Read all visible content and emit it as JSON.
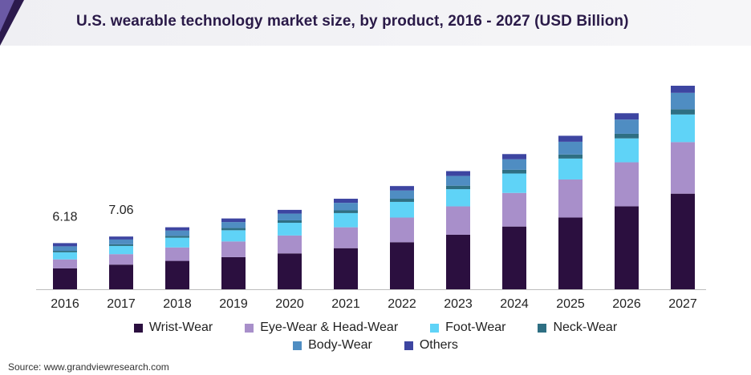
{
  "title": "U.S. wearable technology market size, by product, 2016 - 2027 (USD Billion)",
  "source": "Source: www.grandviewresearch.com",
  "colors": {
    "wrist": "#2b0f3f",
    "eye": "#a88fca",
    "foot": "#5fd3f7",
    "neck": "#2e6f83",
    "body": "#4f8dc2",
    "others": "#3d45a1"
  },
  "chart_data": {
    "type": "bar",
    "stacked": true,
    "categories": [
      "2016",
      "2017",
      "2018",
      "2019",
      "2020",
      "2021",
      "2022",
      "2023",
      "2024",
      "2025",
      "2026",
      "2027"
    ],
    "series": [
      {
        "name": "Wrist-Wear",
        "color_key": "wrist",
        "values": [
          2.8,
          3.3,
          3.8,
          4.3,
          4.8,
          5.5,
          6.3,
          7.3,
          8.4,
          9.6,
          11.1,
          12.8
        ]
      },
      {
        "name": "Eye-Wear & Head-Wear",
        "color_key": "eye",
        "values": [
          1.2,
          1.4,
          1.8,
          2.1,
          2.4,
          2.8,
          3.3,
          3.8,
          4.5,
          5.1,
          5.9,
          6.9
        ]
      },
      {
        "name": "Foot-Wear",
        "color_key": "foot",
        "values": [
          0.95,
          1.1,
          1.3,
          1.5,
          1.7,
          1.9,
          2.1,
          2.3,
          2.6,
          2.8,
          3.2,
          3.7
        ]
      },
      {
        "name": "Neck-Wear",
        "color_key": "neck",
        "values": [
          0.2,
          0.22,
          0.26,
          0.3,
          0.33,
          0.37,
          0.42,
          0.47,
          0.5,
          0.55,
          0.62,
          0.7
        ]
      },
      {
        "name": "Body-Wear",
        "color_key": "body",
        "values": [
          0.6,
          0.64,
          0.7,
          0.8,
          0.9,
          1.0,
          1.1,
          1.3,
          1.4,
          1.7,
          1.9,
          2.2
        ]
      },
      {
        "name": "Others",
        "color_key": "others",
        "values": [
          0.43,
          0.4,
          0.44,
          0.48,
          0.5,
          0.55,
          0.6,
          0.65,
          0.7,
          0.8,
          0.85,
          0.95
        ]
      }
    ],
    "annotations": [
      {
        "category": "2016",
        "text": "6.18"
      },
      {
        "category": "2017",
        "text": "7.06"
      }
    ],
    "ylim": [
      0,
      28
    ],
    "grid": false,
    "legend_position": "bottom"
  }
}
